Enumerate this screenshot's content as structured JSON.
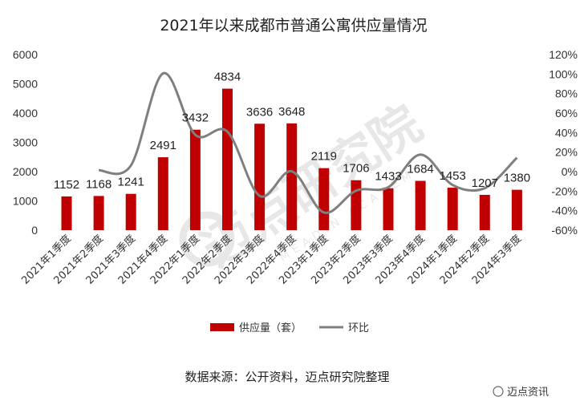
{
  "chart_data": {
    "type": "bar",
    "title": "2021年以来成都市普通公寓供应量情况",
    "categories": [
      "2021年1季度",
      "2021年2季度",
      "2021年3季度",
      "2021年4季度",
      "2022年1季度",
      "2022年2季度",
      "2022年3季度",
      "2022年4季度",
      "2023年1季度",
      "2023年2季度",
      "2023年3季度",
      "2023年4季度",
      "2024年1季度",
      "2024年2季度",
      "2024年3季度"
    ],
    "series": [
      {
        "name": "供应量（套）",
        "type": "bar",
        "axis": "left",
        "color": "#c00000",
        "values": [
          1152,
          1168,
          1241,
          2491,
          3432,
          4834,
          3636,
          3648,
          2119,
          1706,
          1433,
          1684,
          1453,
          1207,
          1380
        ]
      },
      {
        "name": "环比",
        "type": "line",
        "axis": "right",
        "color": "#7f7f7f",
        "values": [
          null,
          1.4,
          6.3,
          100.7,
          37.8,
          40.9,
          -24.8,
          0.3,
          -41.9,
          -19.5,
          -16.0,
          17.5,
          -13.7,
          -16.9,
          14.3
        ]
      }
    ],
    "y_left": {
      "min": 0,
      "max": 6000,
      "ticks": [
        "0",
        "1000",
        "2000",
        "3000",
        "4000",
        "5000",
        "6000"
      ]
    },
    "y_right": {
      "min": -60,
      "max": 120,
      "ticks": [
        "-60%",
        "-40%",
        "-20%",
        "0%",
        "20%",
        "40%",
        "60%",
        "80%",
        "100%",
        "120%"
      ]
    },
    "grid": false,
    "legend": "bottom"
  },
  "source_text": "数据来源：公开资料，迈点研究院整理",
  "watermark": {
    "main": "迈点研究院",
    "sub": "MEADIN ACADEMY",
    "corner": "迈点资讯"
  }
}
